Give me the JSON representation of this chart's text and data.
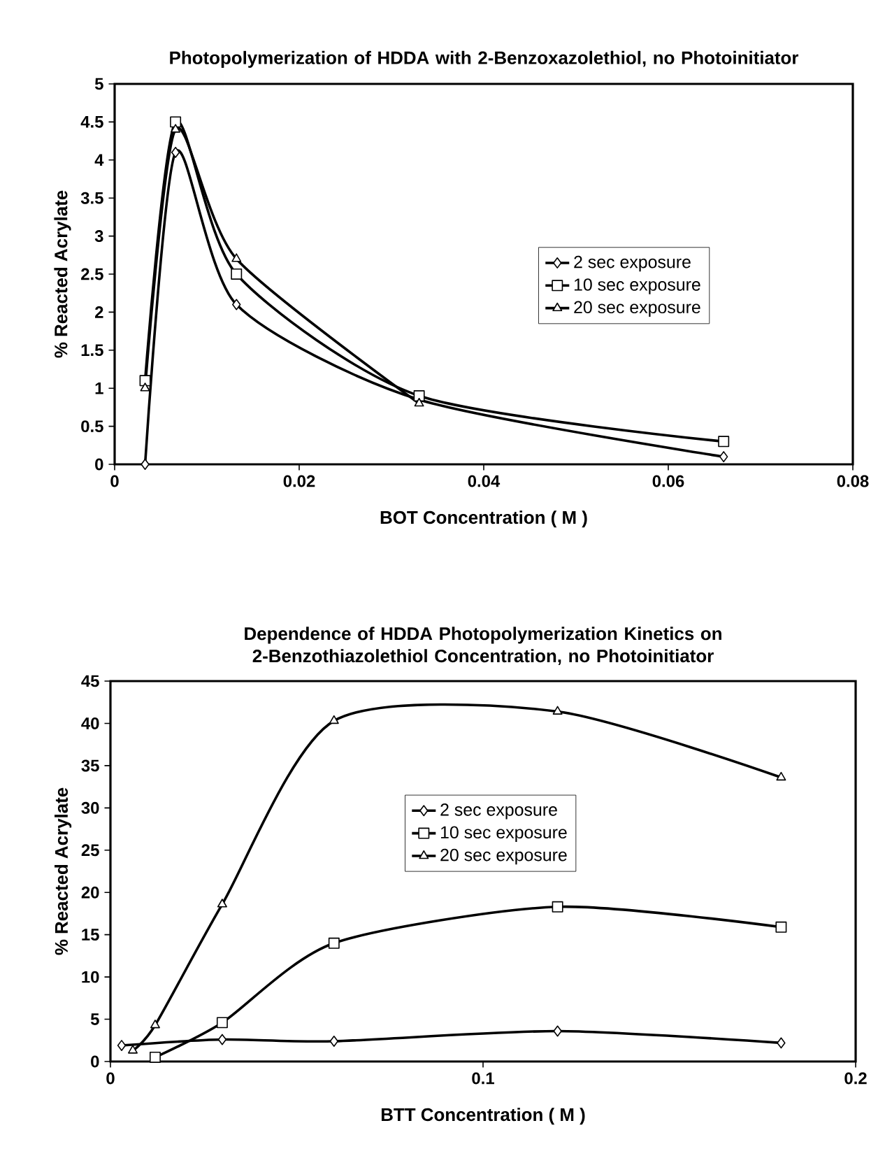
{
  "chart_data": [
    {
      "type": "line",
      "title": "Photopolymerization of HDDA with 2-Benzoxazolethiol, no Photoinitiator",
      "xlabel": "BOT Concentration ( M )",
      "ylabel": "% Reacted Acrylate",
      "xlim": [
        0,
        0.08
      ],
      "xticks": [
        0,
        0.02,
        0.04,
        0.06,
        0.08
      ],
      "ylim": [
        0,
        5
      ],
      "yticks": [
        0,
        0.5,
        1,
        1.5,
        2,
        2.5,
        3,
        3.5,
        4,
        4.5,
        5
      ],
      "legend": "right",
      "line_style": "solid",
      "series": [
        {
          "name": "2 sec exposure",
          "color": "#000000",
          "marker": "diamond",
          "x": [
            0.0033,
            0.0066,
            0.0132,
            0.033,
            0.066
          ],
          "values": [
            0,
            4.1,
            2.1,
            0.85,
            0.1
          ]
        },
        {
          "name": "10 sec exposure",
          "color": "#000000",
          "marker": "square",
          "x": [
            0.0033,
            0.0066,
            0.0132,
            0.033,
            0.066
          ],
          "values": [
            1.1,
            4.5,
            2.5,
            0.9,
            0.3
          ]
        },
        {
          "name": "20 sec exposure",
          "color": "#000000",
          "marker": "triangle",
          "x": [
            0.0033,
            0.0066,
            0.0132,
            0.033
          ],
          "values": [
            1.0,
            4.4,
            2.7,
            0.8
          ]
        }
      ]
    },
    {
      "type": "line",
      "title": "Dependence of HDDA Photopolymerization Kinetics on 2-Benzothiazolethiol Concentration, no Photoinitiator",
      "xlabel": "BTT Concentration ( M )",
      "ylabel": "% Reacted Acrylate",
      "xlim": [
        0,
        0.2
      ],
      "xticks": [
        0,
        0.1,
        0.2
      ],
      "ylim": [
        0,
        45
      ],
      "yticks": [
        0,
        5,
        10,
        15,
        20,
        25,
        30,
        35,
        40,
        45
      ],
      "legend": "center",
      "line_style": "solid",
      "series": [
        {
          "name": "2 sec exposure",
          "color": "#000000",
          "marker": "diamond",
          "x": [
            0.003,
            0.03,
            0.06,
            0.12,
            0.18
          ],
          "values": [
            1.9,
            2.6,
            2.4,
            3.6,
            2.2
          ]
        },
        {
          "name": "10 sec exposure",
          "color": "#000000",
          "marker": "square",
          "x": [
            0.012,
            0.03,
            0.06,
            0.12,
            0.18
          ],
          "values": [
            0.5,
            4.6,
            14.0,
            18.3,
            15.9
          ]
        },
        {
          "name": "20 sec exposure",
          "color": "#000000",
          "marker": "triangle",
          "x": [
            0.006,
            0.012,
            0.03,
            0.06,
            0.12,
            0.18
          ],
          "values": [
            1.3,
            4.3,
            18.6,
            40.3,
            41.4,
            33.6
          ]
        }
      ]
    }
  ]
}
